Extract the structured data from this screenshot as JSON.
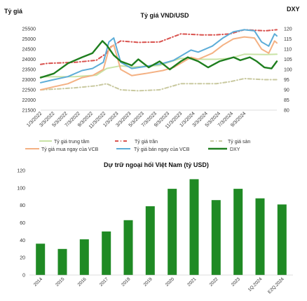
{
  "chart_data": [
    {
      "type": "line",
      "title": "Tỷ giá VND/USD",
      "ylabel": "Tỷ giá",
      "y2label": "DXY",
      "ylim": [
        21500,
        25500
      ],
      "y2lim": [
        80,
        120
      ],
      "yticks": [
        "25500",
        "25000",
        "24500",
        "24000",
        "23500",
        "23000",
        "22500",
        "22000",
        "21500"
      ],
      "y2ticks": [
        "120",
        "115",
        "110",
        "105",
        "100",
        "95",
        "90",
        "85",
        "80"
      ],
      "xticks": [
        "1/3/2022",
        "3/3/2022",
        "5/3/2022",
        "7/3/2022",
        "9/3/2022",
        "11/3/2022",
        "1/3/2023",
        "3/3/2023",
        "5/3/2023",
        "7/3/2023",
        "9/3/2023",
        "11/3/2023",
        "1/3/2024",
        "3/3/2024",
        "5/3/2024",
        "7/3/2024",
        "9/3/2024"
      ],
      "x_range": [
        "2022-01-03",
        "2024-10-20"
      ],
      "series": [
        {
          "name": "Tỷ giá trung tâm",
          "color": "#c9e3a6",
          "axis": "left",
          "points": [
            [
              "2022-01-03",
              23140
            ],
            [
              "2022-06-01",
              23150
            ],
            [
              "2022-09-01",
              23220
            ],
            [
              "2022-10-15",
              23550
            ],
            [
              "2022-12-15",
              23680
            ],
            [
              "2023-02-01",
              23620
            ],
            [
              "2023-06-01",
              23700
            ],
            [
              "2023-09-01",
              24050
            ],
            [
              "2023-12-01",
              24000
            ],
            [
              "2024-02-01",
              24000
            ],
            [
              "2024-04-01",
              24050
            ],
            [
              "2024-06-01",
              24250
            ],
            [
              "2024-09-01",
              24230
            ],
            [
              "2024-10-20",
              24250
            ]
          ]
        },
        {
          "name": "Tỷ giá trần",
          "color": "#d9534f",
          "axis": "left",
          "points": [
            [
              "2022-01-03",
              23750
            ],
            [
              "2022-02-01",
              23800
            ],
            [
              "2022-06-01",
              23850
            ],
            [
              "2022-09-01",
              23950
            ],
            [
              "2022-10-15",
              24300
            ],
            [
              "2022-11-01",
              24600
            ],
            [
              "2022-12-15",
              24900
            ],
            [
              "2023-03-01",
              24830
            ],
            [
              "2023-06-01",
              24850
            ],
            [
              "2023-09-01",
              25250
            ],
            [
              "2023-12-01",
              25200
            ],
            [
              "2024-02-01",
              25200
            ],
            [
              "2024-04-01",
              25250
            ],
            [
              "2024-06-01",
              25450
            ],
            [
              "2024-09-01",
              25400
            ],
            [
              "2024-10-20",
              25450
            ]
          ]
        },
        {
          "name": "Tỷ giá sàn",
          "color": "#c9c9a0",
          "axis": "left",
          "points": [
            [
              "2022-01-03",
              22500
            ],
            [
              "2022-04-01",
              22550
            ],
            [
              "2022-06-01",
              22600
            ],
            [
              "2022-09-01",
              22700
            ],
            [
              "2022-10-15",
              22800
            ],
            [
              "2022-12-15",
              22500
            ],
            [
              "2023-03-01",
              22450
            ],
            [
              "2023-06-01",
              22500
            ],
            [
              "2023-09-01",
              22800
            ],
            [
              "2023-12-01",
              22800
            ],
            [
              "2024-02-01",
              22800
            ],
            [
              "2024-04-01",
              22900
            ],
            [
              "2024-06-01",
              23050
            ],
            [
              "2024-09-01",
              23000
            ],
            [
              "2024-10-20",
              23000
            ]
          ]
        },
        {
          "name": "Tỷ giá mua ngay của VCB",
          "color": "#f4b183",
          "axis": "left",
          "points": [
            [
              "2022-01-03",
              22500
            ],
            [
              "2022-03-01",
              22650
            ],
            [
              "2022-05-01",
              22800
            ],
            [
              "2022-07-01",
              23100
            ],
            [
              "2022-08-15",
              23200
            ],
            [
              "2022-10-01",
              23500
            ],
            [
              "2022-10-25",
              24500
            ],
            [
              "2022-11-15",
              24700
            ],
            [
              "2022-12-15",
              23500
            ],
            [
              "2023-02-01",
              23200
            ],
            [
              "2023-04-01",
              23300
            ],
            [
              "2023-06-15",
              23450
            ],
            [
              "2023-08-01",
              23600
            ],
            [
              "2023-10-15",
              24100
            ],
            [
              "2023-11-15",
              24000
            ],
            [
              "2024-01-15",
              24300
            ],
            [
              "2024-03-01",
              24700
            ],
            [
              "2024-04-15",
              25000
            ],
            [
              "2024-06-01",
              25100
            ],
            [
              "2024-07-15",
              25050
            ],
            [
              "2024-08-15",
              24500
            ],
            [
              "2024-09-15",
              24300
            ],
            [
              "2024-10-10",
              24900
            ],
            [
              "2024-10-20",
              24800
            ]
          ]
        },
        {
          "name": "Tỷ giá bán ngay của VCB",
          "color": "#5dadd8",
          "axis": "left",
          "points": [
            [
              "2022-01-03",
              22850
            ],
            [
              "2022-03-01",
              23000
            ],
            [
              "2022-05-01",
              23150
            ],
            [
              "2022-07-01",
              23450
            ],
            [
              "2022-08-15",
              23550
            ],
            [
              "2022-10-01",
              23850
            ],
            [
              "2022-10-25",
              24850
            ],
            [
              "2022-11-15",
              25050
            ],
            [
              "2022-12-15",
              23850
            ],
            [
              "2023-02-01",
              23550
            ],
            [
              "2023-04-01",
              23650
            ],
            [
              "2023-06-15",
              23800
            ],
            [
              "2023-08-01",
              23950
            ],
            [
              "2023-10-15",
              24450
            ],
            [
              "2023-11-15",
              24350
            ],
            [
              "2024-01-15",
              24650
            ],
            [
              "2024-03-01",
              25050
            ],
            [
              "2024-04-15",
              25350
            ],
            [
              "2024-06-01",
              25450
            ],
            [
              "2024-07-15",
              25400
            ],
            [
              "2024-08-15",
              24850
            ],
            [
              "2024-09-15",
              24650
            ],
            [
              "2024-10-10",
              25250
            ],
            [
              "2024-10-20",
              25150
            ]
          ]
        },
        {
          "name": "DXY",
          "color": "#1e7e1e",
          "axis": "right",
          "points": [
            [
              "2022-01-03",
              96
            ],
            [
              "2022-03-01",
              98
            ],
            [
              "2022-05-01",
              103
            ],
            [
              "2022-07-01",
              106
            ],
            [
              "2022-08-15",
              108
            ],
            [
              "2022-09-27",
              114
            ],
            [
              "2022-10-15",
              112
            ],
            [
              "2022-11-15",
              107
            ],
            [
              "2022-12-15",
              104
            ],
            [
              "2023-02-01",
              102
            ],
            [
              "2023-03-01",
              105
            ],
            [
              "2023-04-15",
              101
            ],
            [
              "2023-06-01",
              104
            ],
            [
              "2023-07-15",
              100
            ],
            [
              "2023-09-01",
              104
            ],
            [
              "2023-10-01",
              106
            ],
            [
              "2023-11-15",
              104
            ],
            [
              "2023-12-28",
              101
            ],
            [
              "2024-02-15",
              104
            ],
            [
              "2024-04-16",
              106
            ],
            [
              "2024-05-15",
              104.5
            ],
            [
              "2024-06-25",
              106
            ],
            [
              "2024-07-25",
              104
            ],
            [
              "2024-08-27",
              101
            ],
            [
              "2024-09-27",
              100.5
            ],
            [
              "2024-10-20",
              104
            ]
          ]
        }
      ],
      "legend": {
        "placement": "bottom"
      }
    },
    {
      "type": "bar",
      "title": "Dự trữ ngoại hối Việt Nam (tỷ USD)",
      "categories": [
        "2014",
        "2015",
        "2016",
        "2017",
        "2018",
        "2019",
        "2020",
        "2021",
        "2022",
        "2023",
        "1Q.2024",
        "E2Q.2024"
      ],
      "values": [
        36,
        30,
        41,
        50,
        63,
        79,
        99,
        110,
        86,
        99,
        88,
        81
      ],
      "ylim": [
        0,
        120
      ],
      "yticks": [
        "120",
        "100",
        "80",
        "60",
        "40",
        "20",
        "0"
      ],
      "color": "#1f8a24"
    }
  ]
}
